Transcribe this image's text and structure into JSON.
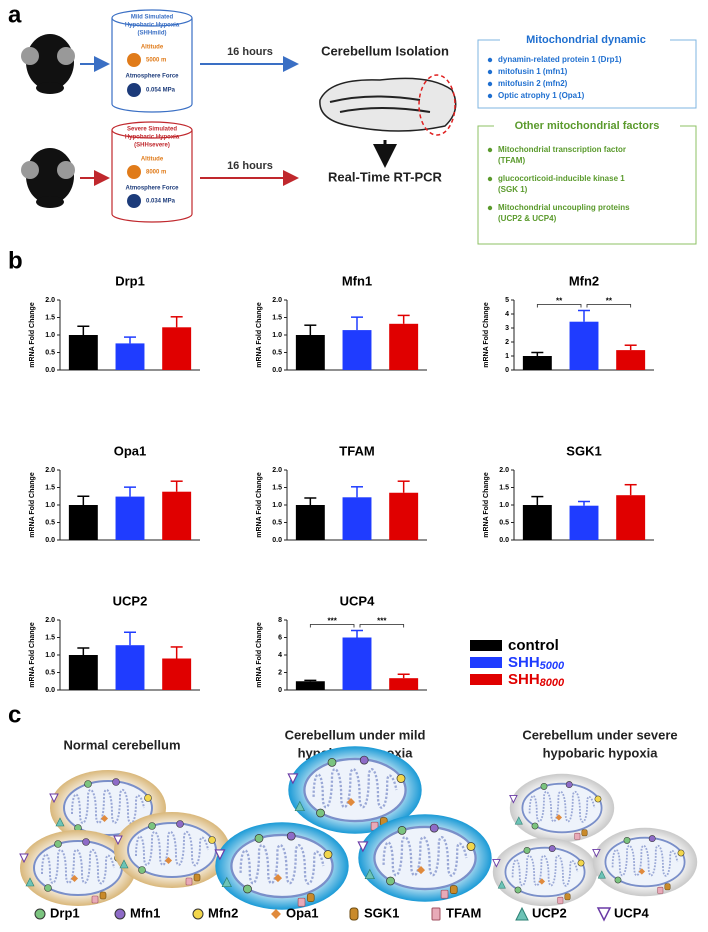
{
  "panel_a": {
    "label": "a",
    "mild": {
      "title": [
        "Mild Simulated",
        "Hypobaric Hypoxia",
        "(SHHmild)"
      ],
      "altitude_label": "Altitude",
      "altitude": "5000 m",
      "force_label": "Atmosphere Force",
      "force": "0.054 MPa"
    },
    "severe": {
      "title": [
        "Severe Simulated",
        "Hypobaric Hypoxia",
        "(SHHsevere)"
      ],
      "altitude_label": "Altitude",
      "altitude": "8000 m",
      "force_label": "Atmosphere Force",
      "force": "0.034 MPa"
    },
    "duration": [
      "16 hours",
      "16 hours"
    ],
    "isolation": "Cerebellum Isolation",
    "assay": "Real-Time RT-PCR",
    "dynamic": {
      "title": "Mitochondrial dynamic",
      "items": [
        "dynamin-related protein 1 (Drp1)",
        "mitofusin 1 (mfn1)",
        "mitofusin 2 (mfn2)",
        "Optic atrophy 1 (Opa1)"
      ]
    },
    "other": {
      "title": "Other mitochondrial factors",
      "items": [
        [
          "Mitochondrial transcription factor",
          "(TFAM)"
        ],
        [
          "glucocorticoid-inducible kinase 1",
          "(SGK 1)"
        ],
        [
          "Mitochondrial uncoupling proteins",
          "(UCP2 & UCP4)"
        ]
      ]
    }
  },
  "panel_b": {
    "label": "b"
  },
  "chart_data": [
    {
      "type": "bar",
      "title": "Drp1",
      "ylabel": "mRNA Fold Change",
      "categories": [
        null,
        null,
        null
      ],
      "values": [
        1.0,
        0.76,
        1.22
      ],
      "errors": [
        0.25,
        0.18,
        0.3
      ],
      "colors": [
        "#000000",
        "#1f3cff",
        "#e00000"
      ],
      "ylim": [
        0,
        2
      ],
      "yticks": [
        {
          "value": 0,
          "label": "0.0"
        },
        0.5,
        {
          "value": 1,
          "label": "1.0"
        },
        1.5,
        {
          "value": 2,
          "label": "2.0"
        }
      ]
    },
    {
      "type": "bar",
      "title": "Mfn1",
      "ylabel": "mRNA Fold Change",
      "categories": [
        null,
        null,
        null
      ],
      "values": [
        1.0,
        1.14,
        1.32
      ],
      "errors": [
        0.28,
        0.37,
        0.24
      ],
      "colors": [
        "#000000",
        "#1f3cff",
        "#e00000"
      ],
      "ylim": [
        0,
        2
      ],
      "yticks": [
        {
          "value": 0,
          "label": "0.0"
        },
        0.5,
        {
          "value": 1,
          "label": "1.0"
        },
        1.5,
        {
          "value": 2,
          "label": "2.0"
        }
      ]
    },
    {
      "type": "bar",
      "title": "Mfn2",
      "ylabel": "mRNA Fold Change",
      "categories": [
        null,
        null,
        null
      ],
      "values": [
        1.0,
        3.45,
        1.42
      ],
      "errors": [
        0.25,
        0.8,
        0.35
      ],
      "colors": [
        "#000000",
        "#1f3cff",
        "#e00000"
      ],
      "ylim": [
        0,
        5
      ],
      "yticks": [
        0,
        1,
        2,
        3,
        4,
        5
      ],
      "annotations": [
        "**",
        "**"
      ]
    },
    {
      "type": "bar",
      "title": "Opa1",
      "ylabel": "mRNA Fold Change",
      "categories": [
        null,
        null,
        null
      ],
      "values": [
        1.0,
        1.24,
        1.38
      ],
      "errors": [
        0.25,
        0.27,
        0.3
      ],
      "colors": [
        "#000000",
        "#1f3cff",
        "#e00000"
      ],
      "ylim": [
        0,
        2
      ],
      "yticks": [
        {
          "value": 0,
          "label": "0.0"
        },
        0.5,
        {
          "value": 1,
          "label": "1.0"
        },
        1.5,
        {
          "value": 2,
          "label": "2.0"
        }
      ]
    },
    {
      "type": "bar",
      "title": "TFAM",
      "ylabel": "mRNA Fold Change",
      "categories": [
        null,
        null,
        null
      ],
      "values": [
        1.0,
        1.22,
        1.35
      ],
      "errors": [
        0.2,
        0.3,
        0.33
      ],
      "colors": [
        "#000000",
        "#1f3cff",
        "#e00000"
      ],
      "ylim": [
        0,
        2
      ],
      "yticks": [
        {
          "value": 0,
          "label": "0.0"
        },
        0.5,
        {
          "value": 1,
          "label": "1.0"
        },
        1.5,
        {
          "value": 2,
          "label": "2.0"
        }
      ]
    },
    {
      "type": "bar",
      "title": "SGK1",
      "ylabel": "mRNA Fold Change",
      "categories": [
        null,
        null,
        null
      ],
      "values": [
        1.0,
        0.98,
        1.28
      ],
      "errors": [
        0.24,
        0.12,
        0.3
      ],
      "colors": [
        "#000000",
        "#1f3cff",
        "#e00000"
      ],
      "ylim": [
        0,
        2
      ],
      "yticks": [
        {
          "value": 0,
          "label": "0.0"
        },
        0.5,
        {
          "value": 1,
          "label": "1.0"
        },
        1.5,
        {
          "value": 2,
          "label": "2.0"
        }
      ]
    },
    {
      "type": "bar",
      "title": "UCP2",
      "ylabel": "mRNA Fold Change",
      "categories": [
        null,
        null,
        null
      ],
      "values": [
        1.0,
        1.28,
        0.9
      ],
      "errors": [
        0.2,
        0.37,
        0.33
      ],
      "colors": [
        "#000000",
        "#1f3cff",
        "#e00000"
      ],
      "ylim": [
        0,
        2
      ],
      "yticks": [
        {
          "value": 0,
          "label": "0.0"
        },
        0.5,
        {
          "value": 1,
          "label": "1.0"
        },
        1.5,
        {
          "value": 2,
          "label": "2.0"
        }
      ]
    },
    {
      "type": "bar",
      "title": "UCP4",
      "ylabel": "mRNA Fold Change",
      "categories": [
        null,
        null,
        null
      ],
      "values": [
        1.0,
        6.0,
        1.35
      ],
      "errors": [
        0.1,
        0.8,
        0.45
      ],
      "colors": [
        "#000000",
        "#1f3cff",
        "#e00000"
      ],
      "ylim": [
        0,
        8
      ],
      "yticks": [
        0,
        2,
        4,
        6,
        8
      ],
      "annotations": [
        "***",
        "***"
      ]
    }
  ],
  "legend": [
    {
      "name": "control",
      "color": "#000000"
    },
    {
      "name": "SHH",
      "sub": "5000",
      "color": "#1f3cff"
    },
    {
      "name": "SHH",
      "sub": "8000",
      "color": "#e00000"
    }
  ],
  "panel_c": {
    "label": "c",
    "titles": [
      [
        "Normal cerebellum"
      ],
      [
        "Cerebellum under mild",
        "hypobaric hypoxia"
      ],
      [
        "Cerebellum under severe",
        "hypobaric hypoxia"
      ]
    ],
    "legend": [
      "Drp1",
      "Mfn1",
      "Mfn2",
      "Opa1",
      "SGK1",
      "TFAM",
      "UCP2",
      "UCP4"
    ]
  }
}
